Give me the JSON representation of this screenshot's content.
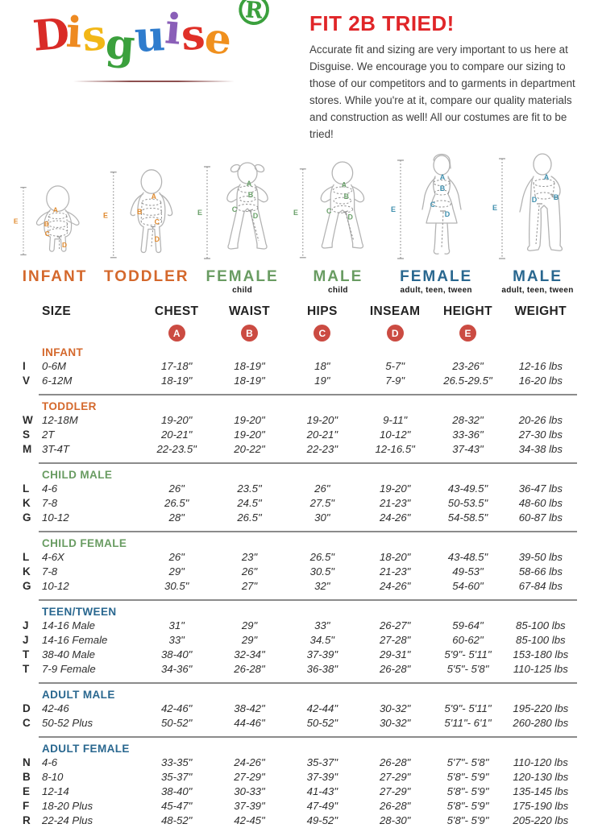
{
  "logo": {
    "letters": [
      {
        "ch": "D",
        "color": "#d92b27"
      },
      {
        "ch": "i",
        "color": "#ee8a21"
      },
      {
        "ch": "s",
        "color": "#f2b717"
      },
      {
        "ch": "g",
        "color": "#3ba03d"
      },
      {
        "ch": "u",
        "color": "#2f7ccd"
      },
      {
        "ch": "i",
        "color": "#8a5fb8"
      },
      {
        "ch": "s",
        "color": "#e03028"
      },
      {
        "ch": "e",
        "color": "#f0901e"
      },
      {
        "ch": "®",
        "color": "#3ba03d"
      }
    ]
  },
  "header": {
    "title": "FIT 2B TRIED!",
    "title_color": "#e02528",
    "body": "Accurate fit and sizing are very important to us here at Disguise. We encourage you to compare our sizing to those of our competitors and to garments in department stores. While you're at it, compare our quality materials and construction as well! All our costumes are fit to be tried!"
  },
  "measure_letters": [
    "A",
    "B",
    "C",
    "D",
    "E"
  ],
  "figures": [
    {
      "label": "INFANT",
      "sublabel": "",
      "color": "#d4682c",
      "letter_color": "#e08a2e"
    },
    {
      "label": "TODDLER",
      "sublabel": "",
      "color": "#d4682c",
      "letter_color": "#e08a2e"
    },
    {
      "label": "FEMALE",
      "sublabel": "child",
      "color": "#699c62",
      "letter_color": "#6aa06a"
    },
    {
      "label": "MALE",
      "sublabel": "child",
      "color": "#699c62",
      "letter_color": "#6aa06a"
    },
    {
      "label": "FEMALE",
      "sublabel": "adult, teen, tween",
      "color": "#29678f",
      "letter_color": "#3f8fae"
    },
    {
      "label": "MALE",
      "sublabel": "adult, teen, tween",
      "color": "#29678f",
      "letter_color": "#3f8fae"
    }
  ],
  "table": {
    "columns": [
      "SIZE",
      "CHEST",
      "WAIST",
      "HIPS",
      "INSEAM",
      "HEIGHT",
      "WEIGHT"
    ],
    "letter_badges": [
      "A",
      "B",
      "C",
      "D",
      "E"
    ],
    "badge_color": "#cb4b42",
    "sections": [
      {
        "name": "INFANT",
        "color": "#d4682c",
        "rows": [
          {
            "code": "I",
            "size": "0-6M",
            "chest": "17-18\"",
            "waist": "18-19\"",
            "hips": "18\"",
            "inseam": "5-7\"",
            "height": "23-26\"",
            "weight": "12-16 lbs"
          },
          {
            "code": "V",
            "size": "6-12M",
            "chest": "18-19\"",
            "waist": "18-19\"",
            "hips": "19\"",
            "inseam": "7-9\"",
            "height": "26.5-29.5\"",
            "weight": "16-20 lbs"
          }
        ]
      },
      {
        "name": "TODDLER",
        "color": "#d4682c",
        "rows": [
          {
            "code": "W",
            "size": "12-18M",
            "chest": "19-20\"",
            "waist": "19-20\"",
            "hips": "19-20\"",
            "inseam": "9-11\"",
            "height": "28-32\"",
            "weight": "20-26 lbs"
          },
          {
            "code": "S",
            "size": "2T",
            "chest": "20-21\"",
            "waist": "19-20\"",
            "hips": "20-21\"",
            "inseam": "10-12\"",
            "height": "33-36\"",
            "weight": "27-30 lbs"
          },
          {
            "code": "M",
            "size": "3T-4T",
            "chest": "22-23.5\"",
            "waist": "20-22\"",
            "hips": "22-23\"",
            "inseam": "12-16.5\"",
            "height": "37-43\"",
            "weight": "34-38 lbs"
          }
        ]
      },
      {
        "name": "CHILD MALE",
        "color": "#699c62",
        "rows": [
          {
            "code": "L",
            "size": "4-6",
            "chest": "26\"",
            "waist": "23.5\"",
            "hips": "26\"",
            "inseam": "19-20\"",
            "height": "43-49.5\"",
            "weight": "36-47 lbs"
          },
          {
            "code": "K",
            "size": "7-8",
            "chest": "26.5\"",
            "waist": "24.5\"",
            "hips": "27.5\"",
            "inseam": "21-23\"",
            "height": "50-53.5\"",
            "weight": "48-60 lbs"
          },
          {
            "code": "G",
            "size": "10-12",
            "chest": "28\"",
            "waist": "26.5\"",
            "hips": "30\"",
            "inseam": "24-26\"",
            "height": "54-58.5\"",
            "weight": "60-87 lbs"
          }
        ]
      },
      {
        "name": "CHILD FEMALE",
        "color": "#699c62",
        "rows": [
          {
            "code": "L",
            "size": "4-6X",
            "chest": "26\"",
            "waist": "23\"",
            "hips": "26.5\"",
            "inseam": "18-20\"",
            "height": "43-48.5\"",
            "weight": "39-50 lbs"
          },
          {
            "code": "K",
            "size": "7-8",
            "chest": "29\"",
            "waist": "26\"",
            "hips": "30.5\"",
            "inseam": "21-23\"",
            "height": "49-53\"",
            "weight": "58-66 lbs"
          },
          {
            "code": "G",
            "size": "10-12",
            "chest": "30.5\"",
            "waist": "27\"",
            "hips": "32\"",
            "inseam": "24-26\"",
            "height": "54-60\"",
            "weight": "67-84 lbs"
          }
        ]
      },
      {
        "name": "TEEN/TWEEN",
        "color": "#29678f",
        "rows": [
          {
            "code": "J",
            "size": "14-16 Male",
            "chest": "31\"",
            "waist": "29\"",
            "hips": "33\"",
            "inseam": "26-27\"",
            "height": "59-64\"",
            "weight": "85-100 lbs"
          },
          {
            "code": "J",
            "size": "14-16 Female",
            "chest": "33\"",
            "waist": "29\"",
            "hips": "34.5\"",
            "inseam": "27-28\"",
            "height": "60-62\"",
            "weight": "85-100 lbs"
          },
          {
            "code": "T",
            "size": "38-40 Male",
            "chest": "38-40\"",
            "waist": "32-34\"",
            "hips": "37-39\"",
            "inseam": "29-31\"",
            "height": "5'9\"- 5'11\"",
            "weight": "153-180 lbs"
          },
          {
            "code": "T",
            "size": "7-9 Female",
            "chest": "34-36\"",
            "waist": "26-28\"",
            "hips": "36-38\"",
            "inseam": "26-28\"",
            "height": "5'5\"- 5'8\"",
            "weight": "110-125 lbs"
          }
        ]
      },
      {
        "name": "ADULT MALE",
        "color": "#29678f",
        "rows": [
          {
            "code": "D",
            "size": "42-46",
            "chest": "42-46\"",
            "waist": "38-42\"",
            "hips": "42-44\"",
            "inseam": "30-32\"",
            "height": "5'9\"- 5'11\"",
            "weight": "195-220 lbs"
          },
          {
            "code": "C",
            "size": "50-52 Plus",
            "chest": "50-52\"",
            "waist": "44-46\"",
            "hips": "50-52\"",
            "inseam": "30-32\"",
            "height": "5'11\"- 6'1\"",
            "weight": "260-280 lbs"
          }
        ]
      },
      {
        "name": "ADULT FEMALE",
        "color": "#29678f",
        "rows": [
          {
            "code": "N",
            "size": "4-6",
            "chest": "33-35\"",
            "waist": "24-26\"",
            "hips": "35-37\"",
            "inseam": "26-28\"",
            "height": "5'7\"- 5'8\"",
            "weight": "110-120 lbs"
          },
          {
            "code": "B",
            "size": "8-10",
            "chest": "35-37\"",
            "waist": "27-29\"",
            "hips": "37-39\"",
            "inseam": "27-29\"",
            "height": "5'8\"- 5'9\"",
            "weight": "120-130 lbs"
          },
          {
            "code": "E",
            "size": "12-14",
            "chest": "38-40\"",
            "waist": "30-33\"",
            "hips": "41-43\"",
            "inseam": "27-29\"",
            "height": "5'8\"- 5'9\"",
            "weight": "135-145 lbs"
          },
          {
            "code": "F",
            "size": "18-20 Plus",
            "chest": "45-47\"",
            "waist": "37-39\"",
            "hips": "47-49\"",
            "inseam": "26-28\"",
            "height": "5'8\"- 5'9\"",
            "weight": "175-190 lbs"
          },
          {
            "code": "R",
            "size": "22-24 Plus",
            "chest": "48-52\"",
            "waist": "42-45\"",
            "hips": "49-52\"",
            "inseam": "28-30\"",
            "height": "5'8\"- 5'9\"",
            "weight": "205-220 lbs"
          }
        ]
      }
    ]
  }
}
